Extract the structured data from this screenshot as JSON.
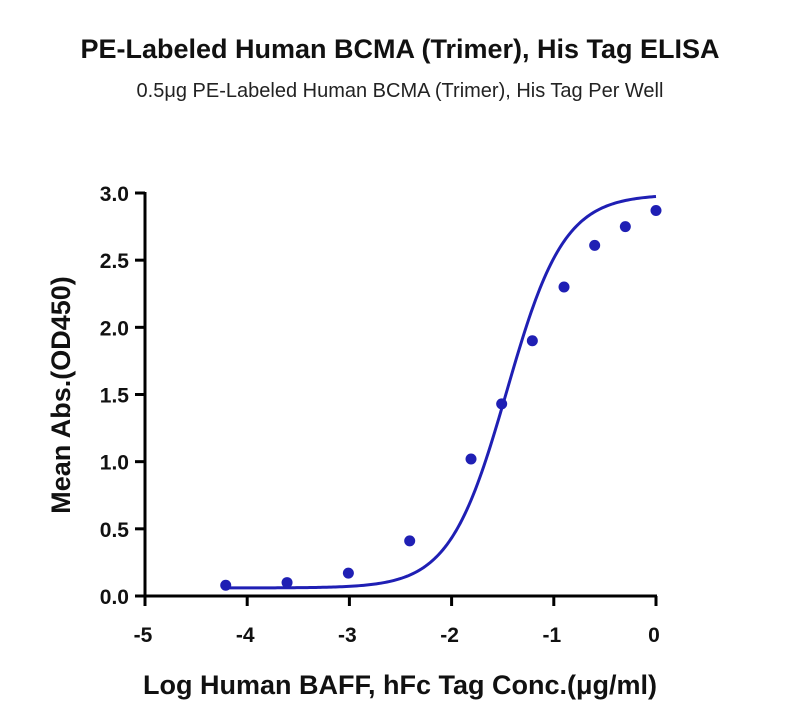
{
  "chart_data": {
    "type": "line",
    "title": "PE-Labeled Human BCMA (Trimer), His Tag ELISA",
    "subtitle": "0.5μg PE-Labeled Human BCMA (Trimer), His Tag Per Well",
    "xlabel": "Log Human BAFF, hFc Tag Conc.(μg/ml)",
    "ylabel": "Mean Abs.(OD450)",
    "xlim": [
      -5,
      0
    ],
    "ylim": [
      0,
      3.0
    ],
    "x_ticks": [
      -5,
      -4,
      -3,
      -2,
      -1,
      0
    ],
    "x_tick_labels": [
      "-5",
      "-4",
      "-3",
      "-2",
      "-1",
      "0"
    ],
    "y_ticks": [
      0,
      0.5,
      1.0,
      1.5,
      2.0,
      2.5,
      3.0
    ],
    "y_tick_labels": [
      "0.0",
      "0.5",
      "1.0",
      "1.5",
      "2.0",
      "2.5",
      "3.0"
    ],
    "grid": false,
    "color": "#1f1fb4",
    "series": [
      {
        "x": [
          -4.21,
          -3.61,
          -3.01,
          -2.41,
          -1.81,
          -1.51,
          -1.21,
          -0.9,
          -0.6,
          -0.3,
          0.0
        ],
        "y": [
          0.08,
          0.1,
          0.17,
          0.41,
          1.02,
          1.43,
          1.9,
          2.3,
          2.61,
          2.75,
          2.87
        ]
      }
    ]
  }
}
